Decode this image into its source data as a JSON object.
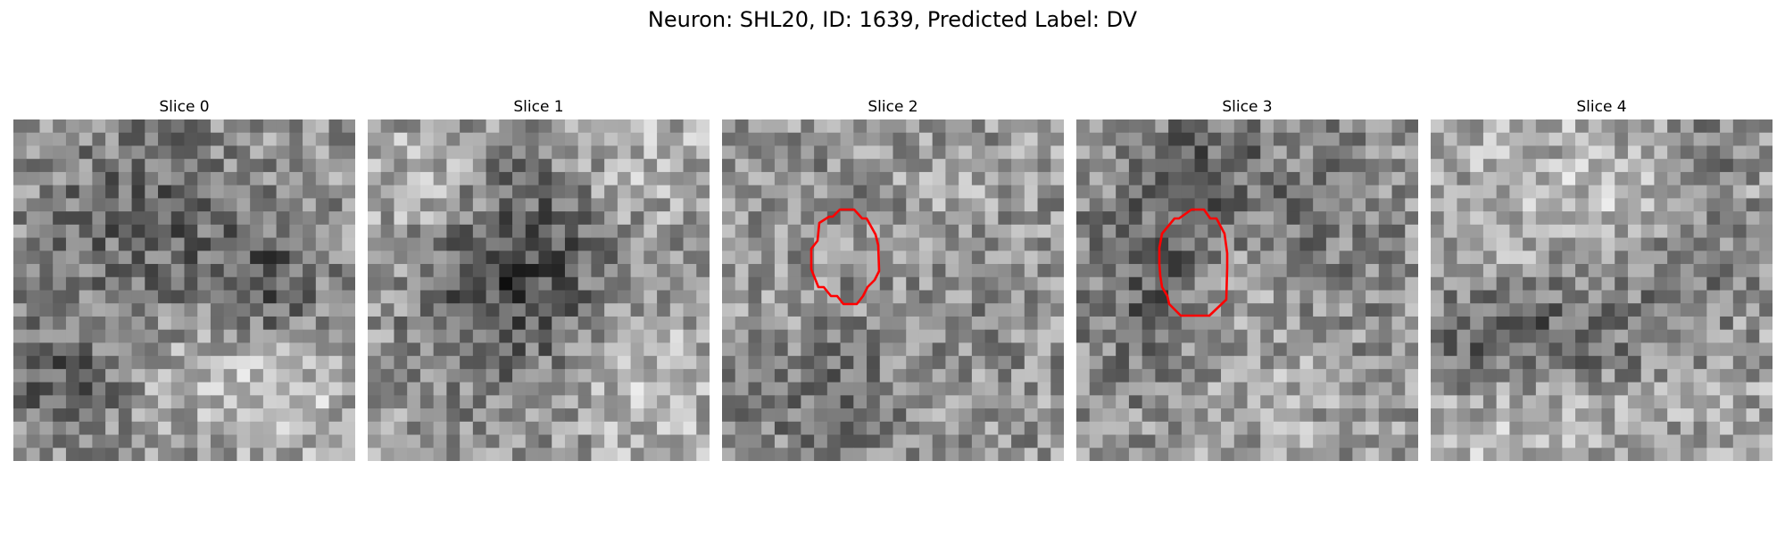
{
  "figure": {
    "suptitle": "Neuron: SHL20, ID: 1639, Predicted Label: DV"
  },
  "panels": [
    {
      "title": "Slice 0",
      "has_contour": false
    },
    {
      "title": "Slice 1",
      "has_contour": false
    },
    {
      "title": "Slice 2",
      "has_contour": true
    },
    {
      "title": "Slice 3",
      "has_contour": true
    },
    {
      "title": "Slice 4",
      "has_contour": false
    }
  ],
  "contour_color": "#ff0000",
  "colormap": "gray"
}
